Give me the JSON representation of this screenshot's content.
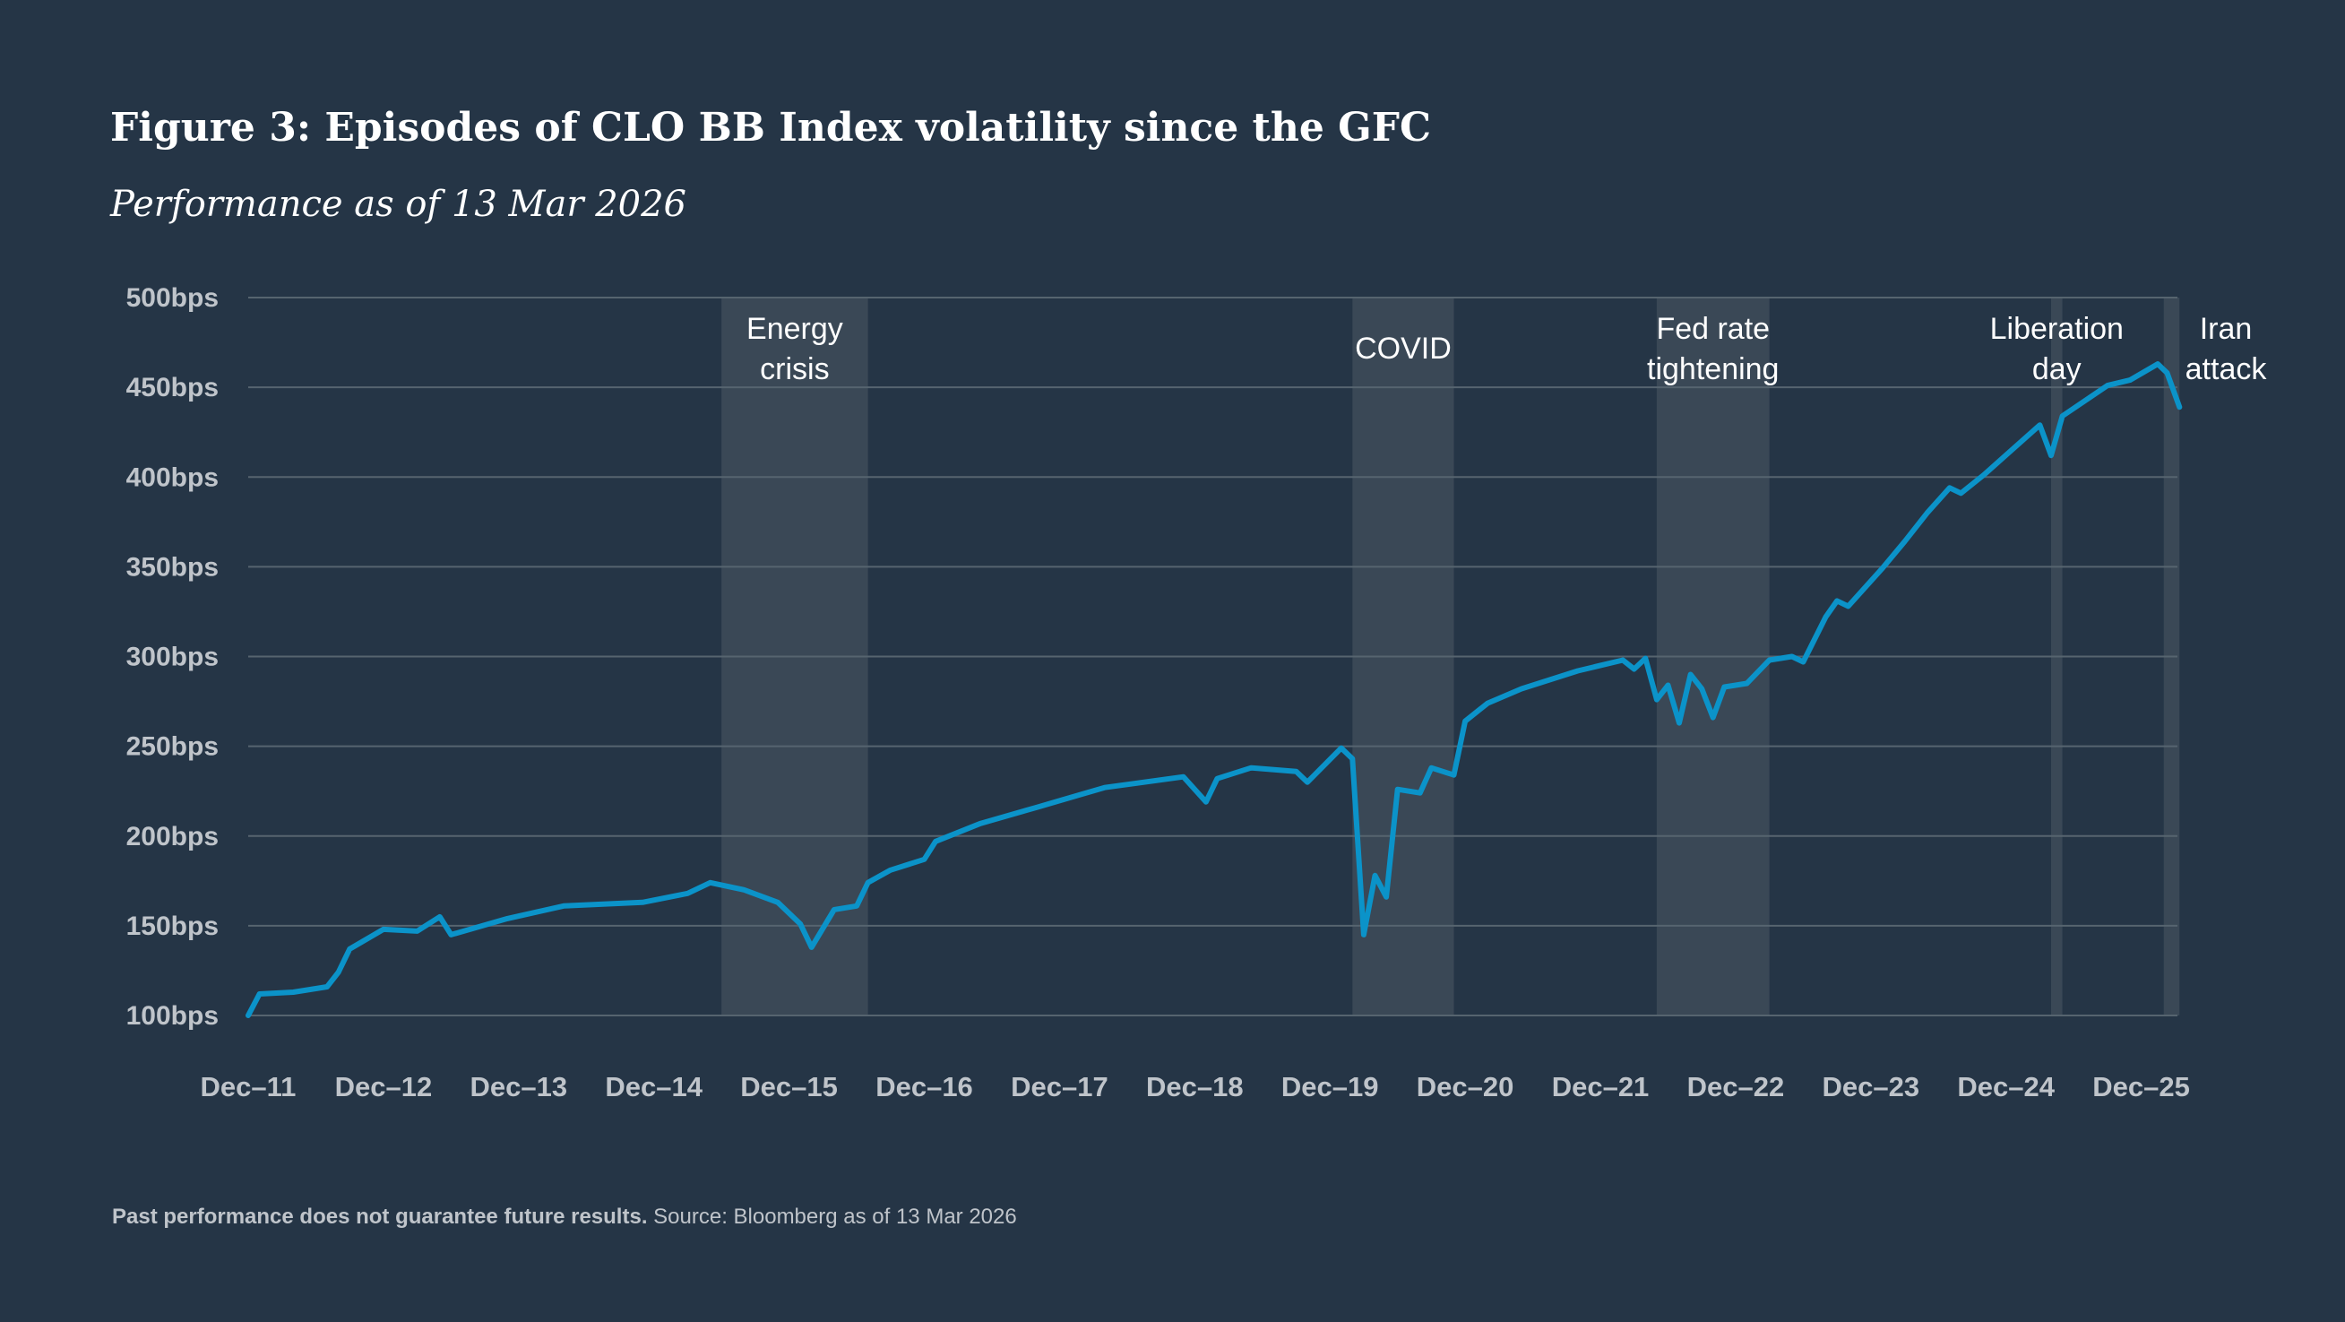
{
  "colors": {
    "background": "#253546",
    "line": "#0b93c9",
    "band": "#3a4856",
    "grid": "#56646f"
  },
  "chart_data": {
    "type": "line",
    "title": "Figure 3: Episodes of CLO BB Index volatility since the GFC",
    "subtitle": "Performance as of 13 Mar 2026",
    "xlabel": "",
    "ylabel": "",
    "ylim": [
      100,
      500
    ],
    "y_ticks": [
      "100bps",
      "150bps",
      "200bps",
      "250bps",
      "300bps",
      "350bps",
      "400bps",
      "450bps",
      "500bps"
    ],
    "y_tick_values": [
      100,
      150,
      200,
      250,
      300,
      350,
      400,
      450,
      500
    ],
    "x_ticks": [
      {
        "label": "Dec–11",
        "date": "2011-12"
      },
      {
        "label": "Dec–12",
        "date": "2012-12"
      },
      {
        "label": "Dec–13",
        "date": "2013-12"
      },
      {
        "label": "Dec–14",
        "date": "2014-12"
      },
      {
        "label": "Dec–15",
        "date": "2015-12"
      },
      {
        "label": "Dec–16",
        "date": "2016-12"
      },
      {
        "label": "Dec–17",
        "date": "2017-12"
      },
      {
        "label": "Dec–18",
        "date": "2018-12"
      },
      {
        "label": "Dec–19",
        "date": "2019-12"
      },
      {
        "label": "Dec–20",
        "date": "2020-12"
      },
      {
        "label": "Dec–21",
        "date": "2021-12"
      },
      {
        "label": "Dec–22",
        "date": "2022-12"
      },
      {
        "label": "Dec–23",
        "date": "2023-12"
      },
      {
        "label": "Dec–24",
        "date": "2024-12"
      },
      {
        "label": "Dec–25",
        "date": "2025-12"
      }
    ],
    "grid": true,
    "units": "bps",
    "series": [
      {
        "points": [
          [
            "2011-12",
            100
          ],
          [
            "2012-01",
            112
          ],
          [
            "2012-04",
            113
          ],
          [
            "2012-07",
            116
          ],
          [
            "2012-08",
            124
          ],
          [
            "2012-09",
            137
          ],
          [
            "2012-12",
            148
          ],
          [
            "2013-03",
            147
          ],
          [
            "2013-05",
            155
          ],
          [
            "2013-06",
            145
          ],
          [
            "2013-11",
            154
          ],
          [
            "2014-04",
            161
          ],
          [
            "2014-11",
            163
          ],
          [
            "2015-03",
            168
          ],
          [
            "2015-05",
            174
          ],
          [
            "2015-08",
            170
          ],
          [
            "2015-11",
            163
          ],
          [
            "2016-01",
            151
          ],
          [
            "2016-02",
            138
          ],
          [
            "2016-04",
            159
          ],
          [
            "2016-06",
            161
          ],
          [
            "2016-07",
            174
          ],
          [
            "2016-09",
            181
          ],
          [
            "2016-12",
            187
          ],
          [
            "2017-01",
            197
          ],
          [
            "2017-05",
            207
          ],
          [
            "2017-10",
            216
          ],
          [
            "2018-04",
            227
          ],
          [
            "2018-11",
            233
          ],
          [
            "2019-01",
            219
          ],
          [
            "2019-02",
            232
          ],
          [
            "2019-05",
            238
          ],
          [
            "2019-09",
            236
          ],
          [
            "2019-10",
            230
          ],
          [
            "2020-01",
            249
          ],
          [
            "2020-02",
            243
          ],
          [
            "2020-03",
            145
          ],
          [
            "2020-04",
            178
          ],
          [
            "2020-05",
            166
          ],
          [
            "2020-06",
            226
          ],
          [
            "2020-08",
            224
          ],
          [
            "2020-09",
            238
          ],
          [
            "2020-11",
            234
          ],
          [
            "2020-12",
            264
          ],
          [
            "2021-02",
            274
          ],
          [
            "2021-05",
            282
          ],
          [
            "2021-10",
            292
          ],
          [
            "2022-02",
            298
          ],
          [
            "2022-03",
            293
          ],
          [
            "2022-04",
            299
          ],
          [
            "2022-05",
            276
          ],
          [
            "2022-06",
            284
          ],
          [
            "2022-07",
            263
          ],
          [
            "2022-08",
            290
          ],
          [
            "2022-09",
            282
          ],
          [
            "2022-10",
            266
          ],
          [
            "2022-11",
            283
          ],
          [
            "2023-01",
            285
          ],
          [
            "2023-03",
            298
          ],
          [
            "2023-05",
            300
          ],
          [
            "2023-06",
            297
          ],
          [
            "2023-08",
            322
          ],
          [
            "2023-09",
            331
          ],
          [
            "2023-10",
            328
          ],
          [
            "2024-01",
            349
          ],
          [
            "2024-03",
            364
          ],
          [
            "2024-05",
            380
          ],
          [
            "2024-07",
            394
          ],
          [
            "2024-08",
            391
          ],
          [
            "2024-10",
            401
          ],
          [
            "2025-03",
            429
          ],
          [
            "2025-04",
            412
          ],
          [
            "2025-05",
            434
          ],
          [
            "2025-09",
            451
          ],
          [
            "2025-11",
            454
          ],
          [
            "2026-01-15",
            463
          ],
          [
            "2026-02-10",
            458
          ],
          [
            "2026-03-13",
            439
          ]
        ]
      }
    ],
    "shaded_periods": [
      {
        "label_lines": [
          "Energy",
          "crisis"
        ],
        "start": "2015-06",
        "end": "2016-07"
      },
      {
        "label_lines": [
          "COVID"
        ],
        "start": "2020-02",
        "end": "2020-11"
      },
      {
        "label_lines": [
          "Fed rate",
          "tightening"
        ],
        "start": "2022-05",
        "end": "2023-03"
      },
      {
        "label_lines": [
          "Liberation",
          "day"
        ],
        "start": "2025-04",
        "end": "2025-05"
      },
      {
        "label_lines": [
          "Iran",
          "attack"
        ],
        "start": "2026-02",
        "end": "2026-03-13"
      }
    ]
  },
  "footer": {
    "bold": "Past performance does not guarantee future results.",
    "regular": " Source: Bloomberg as of 13 Mar 2026"
  }
}
